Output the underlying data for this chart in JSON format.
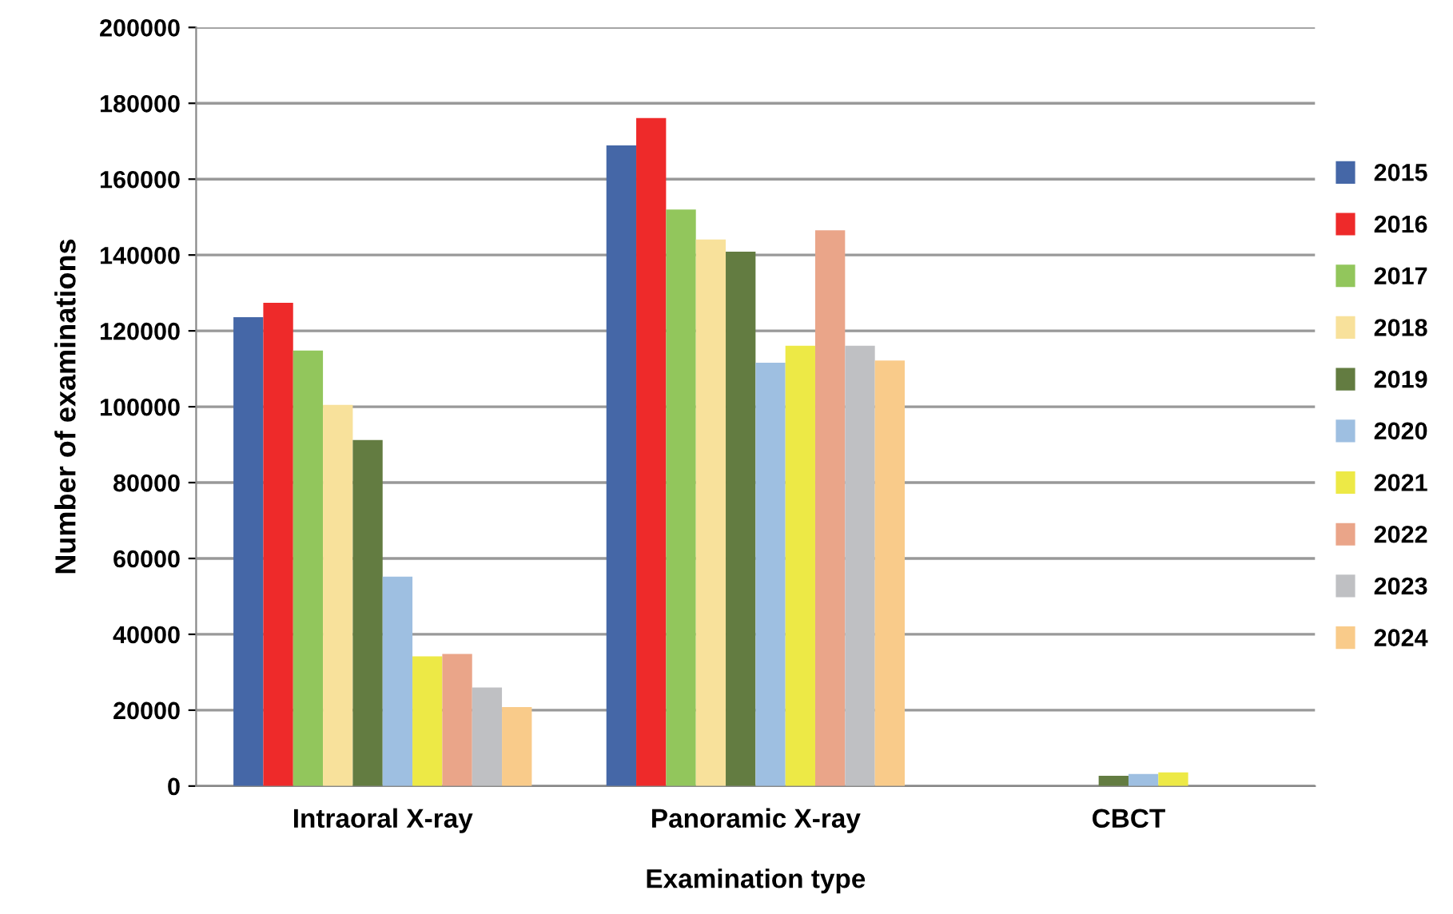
{
  "chart_data": {
    "type": "bar",
    "xlabel": "Examination type",
    "ylabel": "Number of examinations",
    "categories": [
      "Intraoral X-ray",
      "Panoramic X-ray",
      "CBCT"
    ],
    "series": [
      {
        "name": "2015",
        "color": "#4567a7",
        "values": [
          123600,
          168900,
          null
        ]
      },
      {
        "name": "2016",
        "color": "#ee2a2a",
        "values": [
          127400,
          176100,
          null
        ]
      },
      {
        "name": "2017",
        "color": "#92c65c",
        "values": [
          114800,
          152000,
          null
        ]
      },
      {
        "name": "2018",
        "color": "#f8e19b",
        "values": [
          100500,
          144100,
          null
        ]
      },
      {
        "name": "2019",
        "color": "#637c41",
        "values": [
          91200,
          140900,
          2700
        ]
      },
      {
        "name": "2020",
        "color": "#9ebfe1",
        "values": [
          55200,
          111600,
          3200
        ]
      },
      {
        "name": "2021",
        "color": "#ede946",
        "values": [
          34200,
          116100,
          3600
        ]
      },
      {
        "name": "2022",
        "color": "#eaa589",
        "values": [
          34800,
          146500,
          null
        ]
      },
      {
        "name": "2023",
        "color": "#bfc0c3",
        "values": [
          26000,
          116100,
          null
        ]
      },
      {
        "name": "2024",
        "color": "#f9cb8a",
        "values": [
          20800,
          112200,
          null
        ]
      }
    ],
    "ylim": [
      0,
      200000
    ],
    "yticks": [
      0,
      20000,
      40000,
      60000,
      80000,
      100000,
      120000,
      140000,
      160000,
      180000,
      200000
    ],
    "grid": "y",
    "legend": "right"
  }
}
